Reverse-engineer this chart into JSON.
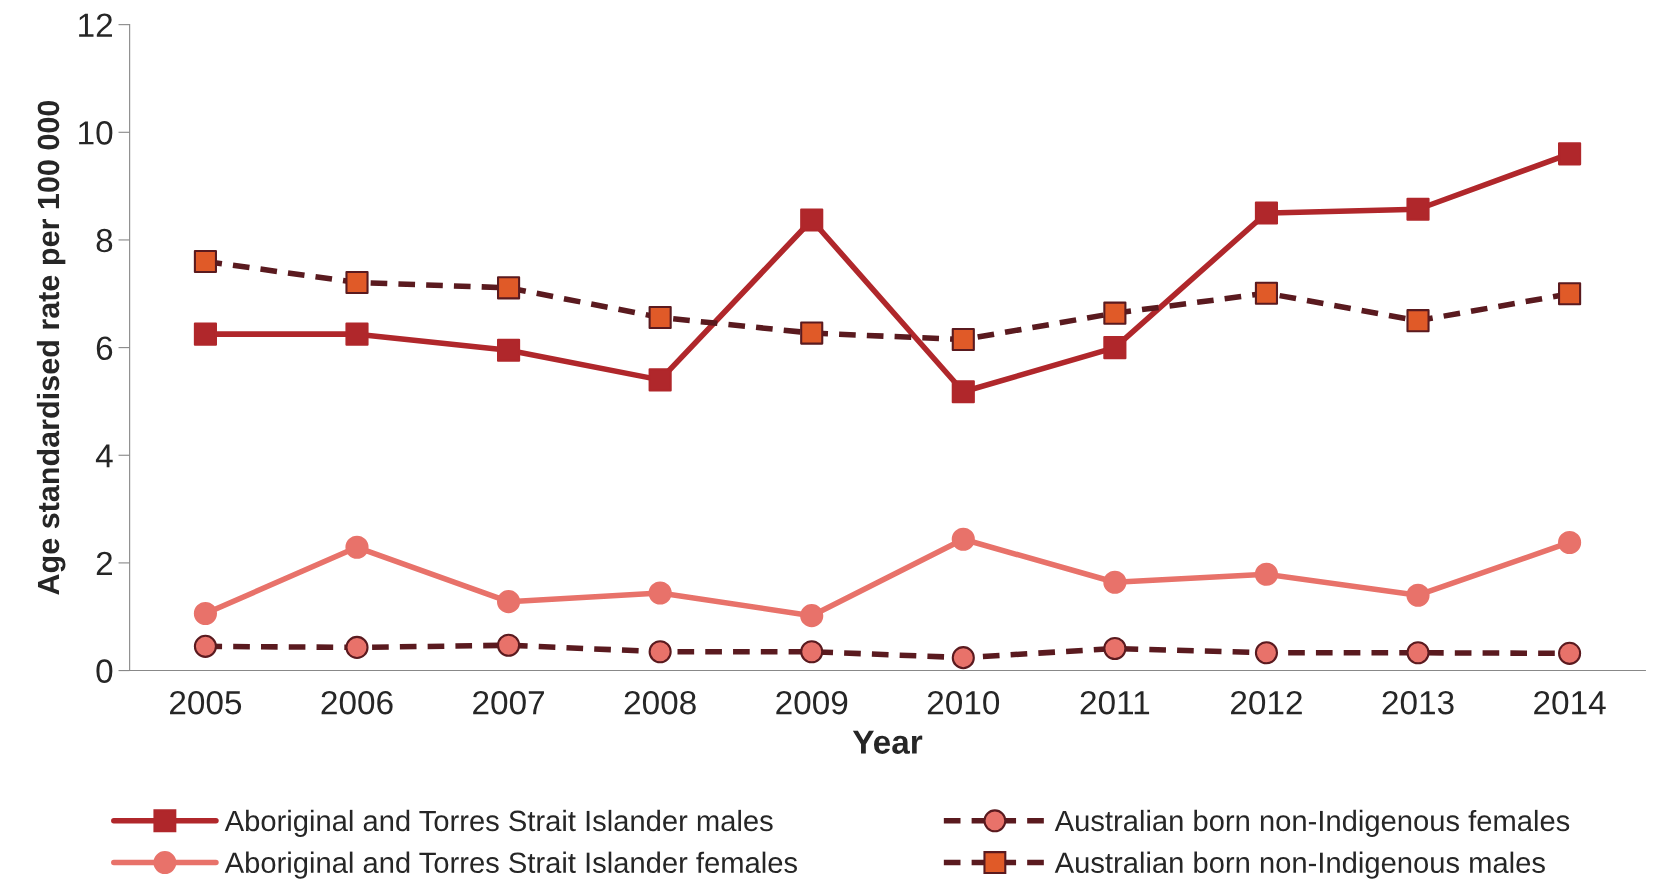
{
  "chart_data": {
    "type": "line",
    "xlabel": "Year",
    "ylabel": "Age standardised rate per 100 000",
    "categories": [
      "2005",
      "2006",
      "2007",
      "2008",
      "2009",
      "2010",
      "2011",
      "2012",
      "2013",
      "2014"
    ],
    "series": [
      {
        "name": "Aboriginal and Torres Strait Islander males",
        "color": "#b0272b",
        "marker": "square",
        "line_style": "solid",
        "values": [
          6.25,
          6.25,
          5.95,
          5.4,
          8.37,
          5.18,
          6.0,
          8.5,
          8.57,
          9.6
        ]
      },
      {
        "name": "Aboriginal and Torres Strait Islander females",
        "color": "#e8726a",
        "marker": "circle",
        "line_style": "solid",
        "values": [
          1.06,
          2.29,
          1.28,
          1.44,
          1.02,
          2.44,
          1.64,
          1.79,
          1.4,
          2.38
        ]
      },
      {
        "name": "Australian born non-Indigenous females",
        "color": "#5a1a1f",
        "colors": [
          "#e8726a",
          "#e8726a",
          "#e8726a",
          "#e8726a",
          "#e8726a",
          "#e8726a",
          "#e8726a",
          "#e8726a",
          "#e8726a",
          "#e8726a"
        ],
        "marker": "circle",
        "line_style": "dashed",
        "values": [
          0.45,
          0.43,
          0.47,
          0.35,
          0.35,
          0.24,
          0.41,
          0.33,
          0.33,
          0.32
        ]
      },
      {
        "name": "Australian born non-Indigenous males",
        "color": "#5a1a1f",
        "colors": [
          "#e05a28",
          "#e05a28",
          "#e05a28",
          "#e05a28",
          "#e05a28",
          "#e05a28",
          "#e05a28",
          "#e05a28",
          "#e05a28",
          "#e05a28"
        ],
        "marker": "square",
        "line_style": "dashed",
        "values": [
          7.6,
          7.21,
          7.11,
          6.56,
          6.27,
          6.15,
          6.64,
          7.01,
          6.5,
          7.0
        ]
      }
    ],
    "ylim": [
      0,
      12
    ],
    "yticks": [
      0,
      2,
      4,
      6,
      8,
      10,
      12
    ],
    "grid": false,
    "legend": "bottom"
  }
}
